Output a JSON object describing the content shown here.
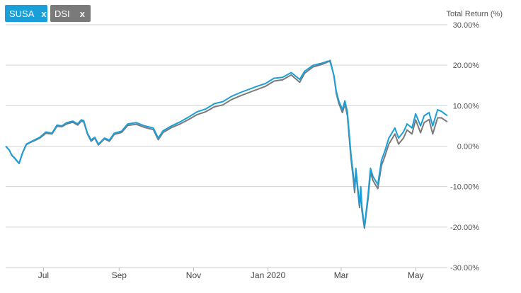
{
  "legend_tags": [
    {
      "label": "SUSA",
      "close": "x",
      "color": "#1a9fd8"
    },
    {
      "label": "DSI",
      "close": "x",
      "color": "#7a7a7a"
    }
  ],
  "chart_data": {
    "type": "line",
    "ylabel": "Total Return (%)",
    "ylim": [
      -30,
      30
    ],
    "yticks": [
      30,
      20,
      10,
      0,
      -10,
      -20,
      -30
    ],
    "ytick_labels": [
      "30.00%",
      "20.00%",
      "10.00%",
      "0.00%",
      "-10.00%",
      "-20.00%",
      "-30.00%"
    ],
    "xlim": [
      "2019-05-31",
      "2020-05-27"
    ],
    "xticks": [
      "2019-07-01",
      "2019-09-01",
      "2019-11-01",
      "2020-01-01",
      "2020-03-01",
      "2020-05-01"
    ],
    "xtick_labels": [
      "Jul",
      "Sep",
      "Nov",
      "Jan 2020",
      "Mar",
      "May"
    ],
    "grid": "horizontal",
    "series": [
      {
        "name": "SUSA",
        "color": "#1a9fd8",
        "x": [
          "2019-05-31",
          "2019-06-03",
          "2019-06-05",
          "2019-06-07",
          "2019-06-09",
          "2019-06-11",
          "2019-06-14",
          "2019-06-17",
          "2019-06-20",
          "2019-06-24",
          "2019-06-28",
          "2019-07-03",
          "2019-07-08",
          "2019-07-12",
          "2019-07-16",
          "2019-07-20",
          "2019-07-25",
          "2019-07-29",
          "2019-08-01",
          "2019-08-03",
          "2019-08-06",
          "2019-08-09",
          "2019-08-12",
          "2019-08-15",
          "2019-08-20",
          "2019-08-24",
          "2019-08-28",
          "2019-09-03",
          "2019-09-08",
          "2019-09-15",
          "2019-09-22",
          "2019-09-29",
          "2019-10-03",
          "2019-10-07",
          "2019-10-14",
          "2019-10-21",
          "2019-10-28",
          "2019-11-04",
          "2019-11-11",
          "2019-11-18",
          "2019-11-25",
          "2019-12-02",
          "2019-12-09",
          "2019-12-16",
          "2019-12-23",
          "2019-12-30",
          "2020-01-06",
          "2020-01-13",
          "2020-01-20",
          "2020-01-27",
          "2020-01-31",
          "2020-02-07",
          "2020-02-14",
          "2020-02-19",
          "2020-02-21",
          "2020-02-24",
          "2020-02-26",
          "2020-02-28",
          "2020-03-02",
          "2020-03-04",
          "2020-03-06",
          "2020-03-09",
          "2020-03-11",
          "2020-03-12",
          "2020-03-13",
          "2020-03-16",
          "2020-03-17",
          "2020-03-18",
          "2020-03-20",
          "2020-03-23",
          "2020-03-25",
          "2020-03-27",
          "2020-03-31",
          "2020-04-03",
          "2020-04-06",
          "2020-04-09",
          "2020-04-14",
          "2020-04-17",
          "2020-04-21",
          "2020-04-24",
          "2020-04-28",
          "2020-05-01",
          "2020-05-05",
          "2020-05-08",
          "2020-05-12",
          "2020-05-15",
          "2020-05-19",
          "2020-05-22",
          "2020-05-27"
        ],
        "y": [
          0,
          -1,
          -2.2,
          -2.8,
          -3.5,
          -4.2,
          -1.5,
          0.5,
          1.0,
          1.6,
          2.2,
          3.5,
          3.2,
          5.2,
          5.0,
          5.8,
          6.2,
          5.5,
          6.5,
          6.3,
          3.2,
          1.5,
          2.2,
          0.5,
          2.0,
          1.5,
          3.2,
          3.7,
          5.5,
          5.8,
          5.0,
          4.5,
          2.0,
          3.8,
          5.0,
          6.0,
          7.2,
          8.5,
          9.2,
          10.5,
          11.0,
          12.3,
          13.2,
          14.0,
          14.8,
          15.5,
          16.8,
          17.0,
          18.2,
          16.5,
          18.5,
          20.0,
          20.5,
          21.0,
          20.8,
          17.5,
          13.5,
          11.2,
          9.0,
          11.2,
          8.5,
          -2.0,
          -7.5,
          -10.5,
          -5.5,
          -14.5,
          -10.0,
          -15.0,
          -20.0,
          -12.0,
          -5.5,
          -7.5,
          -9.5,
          -3.5,
          -1.0,
          2.0,
          4.5,
          2.0,
          3.5,
          5.5,
          4.5,
          8.0,
          5.0,
          7.5,
          8.3,
          5.0,
          9.0,
          8.6,
          7.5
        ]
      },
      {
        "name": "DSI",
        "color": "#7a7a7a",
        "x": [
          "2019-05-31",
          "2019-06-03",
          "2019-06-05",
          "2019-06-07",
          "2019-06-09",
          "2019-06-11",
          "2019-06-14",
          "2019-06-17",
          "2019-06-20",
          "2019-06-24",
          "2019-06-28",
          "2019-07-03",
          "2019-07-08",
          "2019-07-12",
          "2019-07-16",
          "2019-07-20",
          "2019-07-25",
          "2019-07-29",
          "2019-08-01",
          "2019-08-03",
          "2019-08-06",
          "2019-08-09",
          "2019-08-12",
          "2019-08-15",
          "2019-08-20",
          "2019-08-24",
          "2019-08-28",
          "2019-09-03",
          "2019-09-08",
          "2019-09-15",
          "2019-09-22",
          "2019-09-29",
          "2019-10-03",
          "2019-10-07",
          "2019-10-14",
          "2019-10-21",
          "2019-10-28",
          "2019-11-04",
          "2019-11-11",
          "2019-11-18",
          "2019-11-25",
          "2019-12-02",
          "2019-12-09",
          "2019-12-16",
          "2019-12-23",
          "2019-12-30",
          "2020-01-06",
          "2020-01-13",
          "2020-01-20",
          "2020-01-27",
          "2020-01-31",
          "2020-02-07",
          "2020-02-14",
          "2020-02-19",
          "2020-02-21",
          "2020-02-24",
          "2020-02-26",
          "2020-02-28",
          "2020-03-02",
          "2020-03-04",
          "2020-03-06",
          "2020-03-09",
          "2020-03-11",
          "2020-03-12",
          "2020-03-13",
          "2020-03-16",
          "2020-03-17",
          "2020-03-18",
          "2020-03-20",
          "2020-03-23",
          "2020-03-25",
          "2020-03-27",
          "2020-03-31",
          "2020-04-03",
          "2020-04-06",
          "2020-04-09",
          "2020-04-14",
          "2020-04-17",
          "2020-04-21",
          "2020-04-24",
          "2020-04-28",
          "2020-05-01",
          "2020-05-05",
          "2020-05-08",
          "2020-05-12",
          "2020-05-15",
          "2020-05-19",
          "2020-05-22",
          "2020-05-27"
        ],
        "y": [
          0,
          -1,
          -2.3,
          -2.9,
          -3.6,
          -4.3,
          -1.6,
          0.4,
          0.9,
          1.4,
          2.0,
          3.2,
          3.0,
          4.9,
          4.8,
          5.5,
          5.9,
          5.2,
          6.2,
          6.0,
          3.0,
          1.2,
          2.0,
          0.3,
          1.8,
          1.2,
          2.9,
          3.4,
          5.1,
          5.4,
          4.6,
          4.1,
          1.6,
          3.4,
          4.6,
          5.5,
          6.6,
          7.8,
          8.5,
          9.7,
          10.2,
          11.5,
          12.4,
          13.2,
          14.0,
          14.8,
          16.1,
          16.4,
          17.6,
          15.8,
          18.0,
          19.6,
          20.2,
          20.8,
          21.2,
          17.4,
          13.0,
          10.6,
          8.3,
          10.4,
          7.6,
          -3.0,
          -8.5,
          -11.5,
          -6.5,
          -15.2,
          -11.0,
          -16.0,
          -20.3,
          -13.0,
          -6.5,
          -8.5,
          -10.5,
          -4.8,
          -2.3,
          0.5,
          3.0,
          0.5,
          2.0,
          4.0,
          3.0,
          6.5,
          3.3,
          5.8,
          6.6,
          3.0,
          7.0,
          7.0,
          6.0
        ]
      }
    ]
  }
}
